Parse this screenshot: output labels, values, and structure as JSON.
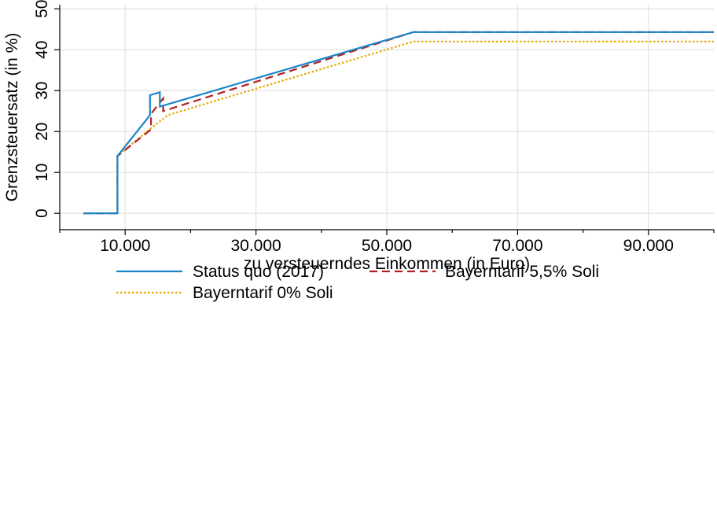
{
  "chart_data": {
    "type": "line",
    "xlabel": "zu versteuerndes Einkommen (in Euro)",
    "ylabel": "Grenzsteuersatz (in %)",
    "xlim": [
      0,
      100000
    ],
    "ylim": [
      -4,
      51
    ],
    "grid": true,
    "legend_position": "bottom",
    "x_ticks": [
      {
        "value": 10000,
        "label": "10.000"
      },
      {
        "value": 30000,
        "label": "30.000"
      },
      {
        "value": 50000,
        "label": "50.000"
      },
      {
        "value": 70000,
        "label": "70.000"
      },
      {
        "value": 90000,
        "label": "90.000"
      }
    ],
    "x_minor_ticks": [
      0,
      20000,
      40000,
      60000,
      80000,
      100000
    ],
    "y_ticks": [
      {
        "value": 0,
        "label": "0"
      },
      {
        "value": 10,
        "label": "10"
      },
      {
        "value": 20,
        "label": "20"
      },
      {
        "value": 30,
        "label": "30"
      },
      {
        "value": 40,
        "label": "40"
      },
      {
        "value": 50,
        "label": "50"
      }
    ],
    "series": [
      {
        "name": "Status quo (2017)",
        "color": "#1a85c8",
        "dash": "solid",
        "points": [
          [
            3600,
            0
          ],
          [
            8820,
            0
          ],
          [
            8820,
            14
          ],
          [
            13800,
            24
          ],
          [
            13800,
            28.9
          ],
          [
            15300,
            29.6
          ],
          [
            15300,
            26.1
          ],
          [
            54057,
            44.3
          ],
          [
            100000,
            44.3
          ]
        ]
      },
      {
        "name": "Bayerntarif 5,5% Soli",
        "color": "#b22222",
        "dash": "dashed",
        "points": [
          [
            3600,
            0
          ],
          [
            8820,
            0
          ],
          [
            8820,
            14
          ],
          [
            13950,
            20.5
          ],
          [
            13950,
            24.3
          ],
          [
            15800,
            28.1
          ],
          [
            15800,
            25
          ],
          [
            54057,
            44.3
          ],
          [
            100000,
            44.3
          ]
        ]
      },
      {
        "name": "Bayerntarif 0% Soli",
        "color": "#e5a800",
        "dash": "dotted",
        "points": [
          [
            3600,
            0
          ],
          [
            8820,
            0
          ],
          [
            8820,
            14
          ],
          [
            13950,
            20.8
          ],
          [
            16500,
            24
          ],
          [
            54057,
            42
          ],
          [
            100000,
            42
          ]
        ]
      }
    ]
  }
}
